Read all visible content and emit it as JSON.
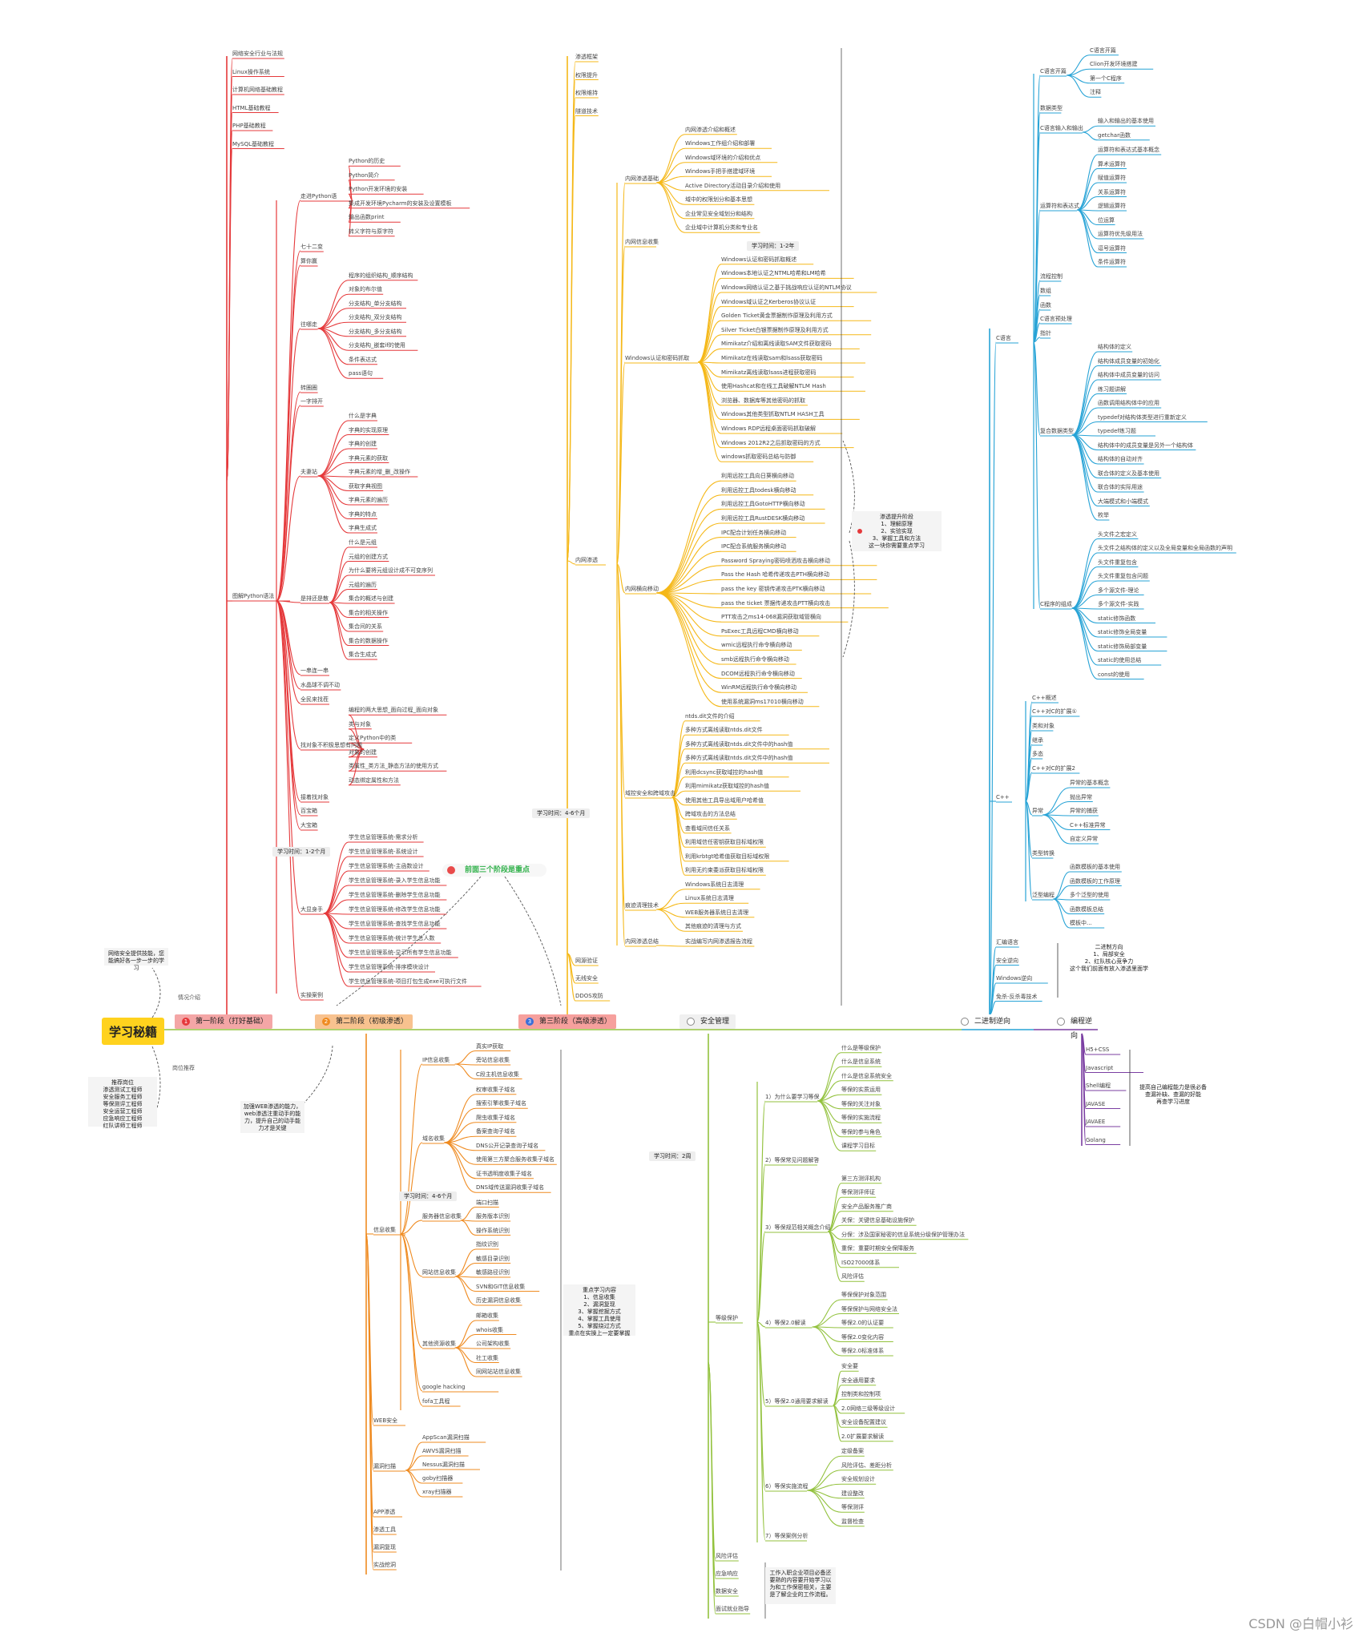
{
  "root": "学习秘籍",
  "colors": {
    "stage1": "#e5393b",
    "stage2": "#ef8b21",
    "stage3": "#f5b818",
    "safety": "#93c23e",
    "binary": "#27a3d6",
    "prog": "#7b3fa2"
  },
  "stage_bars": [
    {
      "num": "1",
      "label": "第一阶段（打好基础）",
      "bg": "#f4a6a6",
      "numbg": "#e5393b"
    },
    {
      "num": "2",
      "label": "第二阶段（初级渗透）",
      "bg": "#f8c28f",
      "numbg": "#ef8b21"
    },
    {
      "num": "3",
      "label": "第三阶段（高级渗透）",
      "bg": "#f6a09d",
      "numbg": "#3a6fd8"
    },
    {
      "num": "",
      "label": "安全管理",
      "bg": "#f0f0f0",
      "numbg": "#ffffff"
    },
    {
      "num": "",
      "label": "二进制逆向",
      "bg": "#ffffff",
      "numbg": "#ffffff"
    },
    {
      "num": "",
      "label": "编程逆向",
      "bg": "#ffffff",
      "numbg": "#ffffff"
    }
  ],
  "stage1": {
    "top": [
      "网络安全行业与法规",
      "Linux操作系统",
      "计算机网络基础教程",
      "HTML基础教程",
      "PHP基础教程",
      "MySQL基础教程"
    ],
    "groups": [
      {
        "name": "走进Python语",
        "leaves": [
          "Python的历史",
          "Python简介",
          "Python开发环境的安装",
          "集成开发环境Pycharm的安装及设置模板",
          "输出函数print",
          "转义字符与原字符"
        ]
      },
      {
        "name": "七十二变",
        "leaves": []
      },
      {
        "name": "算你赢",
        "leaves": []
      },
      {
        "name": "往哪走",
        "leaves": [
          "程序的组织结构_顺序结构",
          "对象的布尔值",
          "分支结构_单分支结构",
          "分支结构_双分支结构",
          "分支结构_多分支结构",
          "分支结构_嵌套if的使用",
          "条件表达式",
          "pass语句"
        ]
      },
      {
        "name": "转圈圈",
        "leaves": []
      },
      {
        "name": "一字排开",
        "leaves": []
      },
      {
        "name": "夫妻站",
        "leaves": [
          "什么是字典",
          "字典的实现原理",
          "字典的创建",
          "字典元素的获取",
          "字典元素的增_删_改操作",
          "获取字典视图",
          "字典元素的遍历",
          "字典的特点",
          "字典生成式"
        ]
      },
      {
        "name": "是排还是散",
        "leaves": [
          "什么是元组",
          "元组的创建方式",
          "为什么要将元组设计成不可变序列",
          "元组的遍历",
          "集合的概述与创建",
          "集合的相关操作",
          "集合间的关系",
          "集合的数据操作",
          "集合生成式"
        ]
      },
      {
        "name": "一串连一串",
        "leaves": []
      },
      {
        "name": "水晶球不调不动",
        "leaves": []
      },
      {
        "name": "全民来找茬",
        "leaves": []
      },
      {
        "name": "找对象不积极思想有问题",
        "leaves": [
          "编程的两大思想_面向过程_面向对象",
          "类与对象",
          "定义Python中的类",
          "对象的创建",
          "类属性_类方法_静态方法的使用方式",
          "动态绑定属性和方法"
        ]
      },
      {
        "name": "接着找对象",
        "leaves": []
      },
      {
        "name": "百宝箱",
        "leaves": []
      },
      {
        "name": "大宝箱",
        "leaves": []
      },
      {
        "name": "大显身手",
        "leaves": [
          "学生信息管理系统-需求分析",
          "学生信息管理系统-系统设计",
          "学生信息管理系统-主函数设计",
          "学生信息管理系统-录入学生信息功能",
          "学生信息管理系统-删除学生信息功能",
          "学生信息管理系统-修改学生信息功能",
          "学生信息管理系统-查找学生信息功能",
          "学生信息管理系统-统计学生总人数",
          "学生信息管理系统-显示所有学生信息功能",
          "学生信息管理系统-排序模块设计",
          "学生信息管理系统-项目打包生成exe可执行文件"
        ]
      },
      {
        "name": "实操案例",
        "leaves": []
      }
    ],
    "python_label": "图解Python语法",
    "time": "学习时间：1-2个月"
  },
  "stage2": {
    "groups": [
      {
        "name": "IP信息收集",
        "leaves": [
          "真实IP获取",
          "旁站信息收集",
          "C段主机信息收集"
        ]
      },
      {
        "name": "域名收集",
        "leaves": [
          "权审收集子域名",
          "搜索引擎收集子域名",
          "爬虫收集子域名",
          "备案查询子域名",
          "DNS公开记录查询子域名",
          "使用第三方聚合服务收集子域名",
          "证书透明度收集子域名",
          "DNS域传送漏洞收集子域名"
        ]
      },
      {
        "name": "服务器信息收集",
        "leaves": [
          "端口扫描",
          "服务版本识别",
          "操作系统识别"
        ]
      },
      {
        "name": "网站信息收集",
        "leaves": [
          "指纹识别",
          "敏感目录识别",
          "敏感路径识别",
          "SVN和GIT信息收集",
          "历史漏洞信息收集"
        ]
      },
      {
        "name": "其他资源收集",
        "leaves": [
          "邮箱收集",
          "whois收集",
          "公司架构收集",
          "社工收集",
          "同网站站信息收集"
        ]
      },
      {
        "name": "google hacking",
        "leaves": []
      },
      {
        "name": "fofa工具程",
        "leaves": []
      }
    ],
    "info_label": "信息收集",
    "web": "WEB安全",
    "scan_label": "漏洞扫描",
    "scan": [
      "AppScan漏洞扫描",
      "AWVS漏洞扫描",
      "Nessus漏洞扫描",
      "goby扫描器",
      "xray扫描器"
    ],
    "bottom": [
      "APP渗透",
      "渗透工具",
      "漏洞复现",
      "实战挖洞"
    ],
    "time": "学习时间：4-6个月"
  },
  "stage3": {
    "top": [
      "渗透框架",
      "权限提升",
      "权限维持",
      "隧道技术"
    ],
    "intranet": "内网渗透",
    "groups": [
      {
        "name": "内网渗透基础",
        "leaves": [
          "内网渗透介绍和概述",
          "Windows工作组介绍和部署",
          "Windows域环境的介绍和优点",
          "Windows手把手搭建域环境",
          "Active Directory活动目录介绍和使用",
          "域中的权限划分和基本思想",
          "企业常见安全域划分和结构",
          "企业域中计算机分类和专业名"
        ]
      },
      {
        "name": "内网信息收集",
        "leaves": []
      },
      {
        "name": "Windows认证和密码抓取",
        "leaves": [
          "Windows认证和密码抓取概述",
          "Windows本地认证之NTML哈希和LM哈希",
          "Windows网络认证之基于挑战响应认证的NTLM协议",
          "Windows域认证之Kerberos协议认证",
          "Golden Ticket黄金票据制作原理及利用方式",
          "Silver Ticket白银票据制作原理及利用方式",
          "Mimikatz介绍和离线读取SAM文件获取密码",
          "Mimikatz在线读取sam和lsass获取密码",
          "Mimikatz离线读取lsass进程获取密码",
          "使用Hashcat和在线工具破解NTLM Hash",
          "浏览器、数据库等其他密码的抓取",
          "Windows其他类型抓取NTLM HASH工具",
          "Windows RDP远程桌面密码抓取破解",
          "Windows 2012R2之后抓取密码的方式",
          "windows抓取密码总结与防御"
        ]
      },
      {
        "name": "内网横向移动",
        "leaves": [
          "利用远控工具向日葵横向移动",
          "利用远控工具todesk横向移动",
          "利用远控工具GotoHTTP横向移动",
          "利用远控工具RustDESK横向移动",
          "IPC配合计划任务横向移动",
          "IPC配合系统服务横向移动",
          "Password Spraying密码喷洒攻击横向移动",
          "Pass the Hash 哈希传递攻击PTH横向移动",
          "pass the key 密钥传递攻击PTK横向移动",
          "pass the ticket 票据传递攻击PTT横向攻击",
          "PTT攻击之ms14-068漏洞获取域管横向",
          "PsExec工具远程CMD横向移动",
          "wmic远程执行命令横向移动",
          "smb远程执行命令横向移动",
          "DCOM远程执行命令横向移动",
          "WinRM远程执行命令横向移动",
          "使用系统漏洞ms17010横向移动"
        ]
      },
      {
        "name": "域控安全和跨域攻击",
        "leaves": [
          "ntds.dit文件的介绍",
          "多种方式离线读取ntds.dit文件",
          "多种方式离线读取ntds.dit文件中的hash值",
          "多种方式离线读取ntds.dit文件中的hash值",
          "利用dcsync获取域控的hash值",
          "利用mimikatz获取域控的hash值",
          "使用其他工具导出域用户哈希值",
          "跨域攻击的方法总结",
          "查看域间信任关系",
          "利用域信任密钥获取目标域权限",
          "利用krbtgt哈希值获取目标域权限",
          "利用无约束委派获取目标域权限"
        ]
      },
      {
        "name": "痕迹清理技术",
        "leaves": [
          "Windows系统日志清理",
          "Linux系统日志清理",
          "WEB服务器系统日志清理",
          "其他痕迹的清理与方式"
        ]
      },
      {
        "name": "内网渗透总结",
        "leaves": [
          "实战编写内网渗透报告流程"
        ]
      }
    ],
    "bottom": [
      "网源验证",
      "无线安全",
      "DDOS攻防"
    ],
    "time_a": "学习时间：1-2年",
    "time_b": "学习时间：4-6个月"
  },
  "safety": {
    "groups": [
      {
        "name": "1）为什么要学习等保",
        "leaves": [
          "什么是等级保护",
          "什么是信息系统",
          "什么是信息系统安全",
          "等保的实质运用",
          "等保的关注对象",
          "等保的实施流程",
          "等保的参与角色",
          "课程学习目标"
        ]
      },
      {
        "name": "2）等保常见问题解答",
        "leaves": []
      },
      {
        "name": "3）等保规范相关概念介绍",
        "leaves": [
          "第三方测评机构",
          "等保测评师证",
          "安全产品服务推广商",
          "关保：关键信息基础设施保护",
          "分保：涉及国家秘密的信息系统分级保护管理办法",
          "重保：重要时期安全保障服务",
          "ISO27000体系",
          "风险评估"
        ]
      },
      {
        "name": "4）等保2.0解读",
        "leaves": [
          "等保保护对象范围",
          "等保保护与网络安全法",
          "等保2.0的认证要",
          "等保2.0变化内容",
          "等保2.0标准体系"
        ]
      },
      {
        "name": "5）等保2.0通用要求解读",
        "leaves": [
          "安全要",
          "安全通用要求",
          "控制类和控制项",
          "2.0网络三级等级设计",
          "安全设备配置建议",
          "2.0扩展要求解读"
        ]
      },
      {
        "name": "6）等保实施流程",
        "leaves": [
          "定级备案",
          "风险评估、差距分析",
          "安全规划设计",
          "建设整改",
          "等保测评",
          "监督检查"
        ]
      },
      {
        "name": "7）等保案例分析",
        "leaves": []
      }
    ],
    "root_label": "等级保护",
    "bottom": [
      "风险评估",
      "应急响应",
      "数据安全",
      "面试就业指导"
    ],
    "time": "学习时间：2周"
  },
  "binary": {
    "c_label": "C语言",
    "c_groups": [
      {
        "name": "C语言开篇",
        "leaves": [
          "C语言开篇",
          "Clion开发环境搭建",
          "第一个C程序",
          "注释"
        ]
      },
      {
        "name": "数据类型",
        "leaves": []
      },
      {
        "name": "C语言输入和输出",
        "leaves": [
          "输入和输出的基本使用",
          "getchar函数"
        ]
      },
      {
        "name": "运算符和表达式",
        "leaves": [
          "运算符和表达式基本概念",
          "算术运算符",
          "赋值运算符",
          "关系运算符",
          "逻辑运算符",
          "位运算",
          "运算符优先级用法",
          "逗号运算符",
          "条件运算符"
        ]
      },
      {
        "name": "流程控制",
        "leaves": []
      },
      {
        "name": "数组",
        "leaves": []
      },
      {
        "name": "函数",
        "leaves": []
      },
      {
        "name": "C语言预处理",
        "leaves": []
      },
      {
        "name": "指针",
        "leaves": []
      },
      {
        "name": "复合数据类型",
        "leaves": [
          "结构体的定义",
          "结构体成员变量的初始化",
          "结构体中成员变量的访问",
          "练习题讲解",
          "函数调用结构体中的应用",
          "typedef对结构体类型进行重新定义",
          "typedef练习题",
          "结构体中的成员变量是另外一个结构体",
          "结构体的自动对齐",
          "联合体的定义及基本使用",
          "联合体的实际用途",
          "大端模式和小端模式",
          "枚举"
        ]
      },
      {
        "name": "C程序的组成",
        "leaves": [
          "头文件之宏定义",
          "头文件之结构体的定义以及全局变量和全局函数的声明",
          "头文件重复包含",
          "头文件重复包含问题",
          "多个源文件-理论",
          "多个源文件-实践",
          "static修饰函数",
          "static修饰全局变量",
          "static修饰局部变量",
          "static的使用总结",
          "const的使用"
        ]
      }
    ],
    "cpp_label": "C++",
    "cpp_groups": [
      {
        "name": "C++概述",
        "leaves": []
      },
      {
        "name": "C++对C的扩展①",
        "leaves": []
      },
      {
        "name": "类和对象",
        "leaves": []
      },
      {
        "name": "继承",
        "leaves": []
      },
      {
        "name": "多态",
        "leaves": []
      },
      {
        "name": "C++对C的扩展2",
        "leaves": []
      },
      {
        "name": "异常",
        "leaves": [
          "异常的基本概念",
          "抛出异常",
          "异常的捕获",
          "C++标准异常",
          "自定义异常"
        ]
      },
      {
        "name": "类型转换",
        "leaves": []
      },
      {
        "name": "泛型编程",
        "leaves": [
          "函数模板的基本使用",
          "函数模板的工作原理",
          "多个泛型的使用",
          "函数模板总结",
          "模板中..."
        ]
      }
    ],
    "misc": [
      "汇编语言",
      "安全逆向",
      "Windows逆向",
      "免杀-反杀毒技术"
    ],
    "note": "二进制方向\n1、局部安全\n2、红队核心竞争力\n这个我们前面有放入渗透里面学"
  },
  "prog": {
    "items": [
      "H5+CSS",
      "Javascript",
      "Shell编程",
      "JAVASE",
      "JAVAEE",
      "Golang"
    ],
    "note": "提高自己编程能力是很必备\n查漏补缺、查漏的好能\n再查学习进度"
  },
  "notes": {
    "n1": "网络安全提供技能，您能搞好各一步一步的学习",
    "n1_edge": "情况介绍",
    "n2": "推荐岗位\n渗透测试工程师\n安全服务工程师\n等保测评工程师\n安全运营工程师\n应急响应工程师\n红队讲师工程师",
    "n2_edge": "岗位推荐",
    "n3": "加强WEB渗透的能力，web渗透注重动手的能力，提升自己的动手能力才是关键",
    "n4": "重点学习内容\n1、信息收集\n2、漏洞复现\n3、掌握挖掘方式\n4、掌握工具使用\n5、掌握绕过方式\n重点在实操上一定要掌握",
    "n5": "渗透提升阶段\n1、理解原理\n2、实验实现\n3、掌握工具和方法\n这一块你需要重点学习",
    "n6": "工作入职企业项目必备还要熟的内容要开始学习以为和工作保密相关，主要是了解企业的工作流程。",
    "warn": "前面三个阶段是重点"
  },
  "footer": "CSDN @白帽小衫"
}
